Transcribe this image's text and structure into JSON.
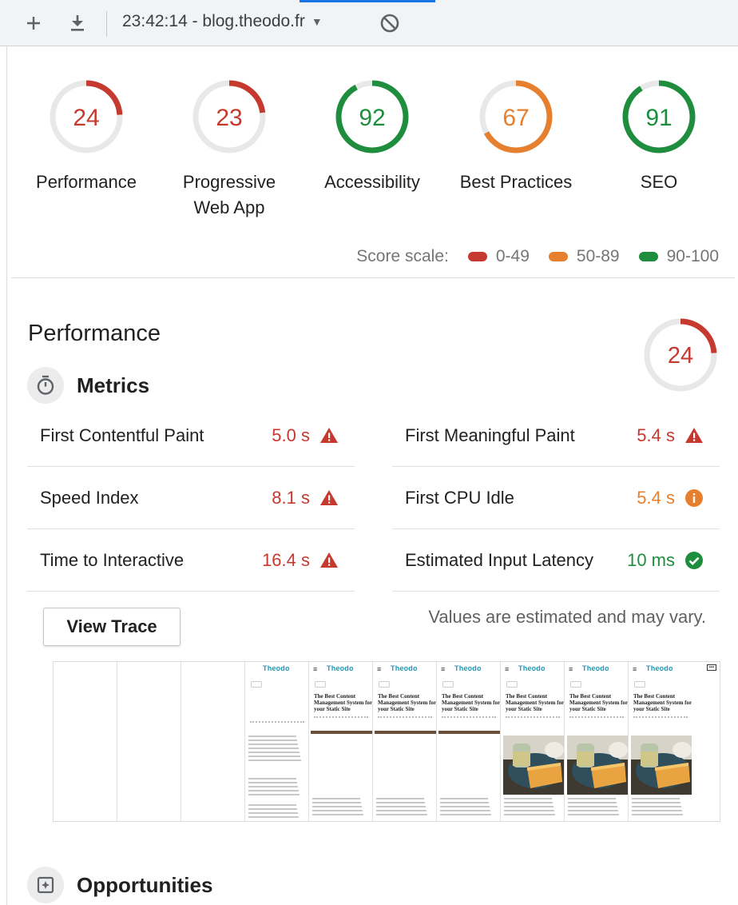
{
  "toolbar": {
    "add_label": "+",
    "report_title": "23:42:14 - blog.theodo.fr",
    "caret": "▼"
  },
  "colors": {
    "fail": "#c5392e",
    "average": "#e6802f",
    "pass": "#1e8e3e",
    "track": "#e8e8e8"
  },
  "gauges": [
    {
      "score": "24",
      "label": "Performance",
      "level": "fail",
      "value": 24
    },
    {
      "score": "23",
      "label": "Progressive Web App",
      "level": "fail",
      "value": 23
    },
    {
      "score": "92",
      "label": "Accessibility",
      "level": "pass",
      "value": 92
    },
    {
      "score": "67",
      "label": "Best Practices",
      "level": "average",
      "value": 67
    },
    {
      "score": "91",
      "label": "SEO",
      "level": "pass",
      "value": 91
    }
  ],
  "score_scale": {
    "label": "Score scale:",
    "ranges": [
      {
        "label": "0-49",
        "level": "fail"
      },
      {
        "label": "50-89",
        "level": "average"
      },
      {
        "label": "90-100",
        "level": "pass"
      }
    ]
  },
  "performance": {
    "title": "Performance",
    "score": "24",
    "value": 24,
    "metrics_title": "Metrics",
    "metrics": [
      {
        "name": "First Contentful Paint",
        "value": "5.0 s",
        "level": "fail",
        "icon": "warning-icon"
      },
      {
        "name": "First Meaningful Paint",
        "value": "5.4 s",
        "level": "fail",
        "icon": "warning-icon"
      },
      {
        "name": "Speed Index",
        "value": "8.1 s",
        "level": "fail",
        "icon": "warning-icon"
      },
      {
        "name": "First CPU Idle",
        "value": "5.4 s",
        "level": "average",
        "icon": "info-icon"
      },
      {
        "name": "Time to Interactive",
        "value": "16.4 s",
        "level": "fail",
        "icon": "warning-icon"
      },
      {
        "name": "Estimated Input Latency",
        "value": "10 ms",
        "level": "pass",
        "icon": "check-icon"
      }
    ],
    "view_trace": "View Trace",
    "note": "Values are estimated and may vary."
  },
  "filmstrip": {
    "logo": "Theodo",
    "article_title": "The Best Content Management System for your Static Site"
  },
  "opportunities": {
    "title": "Opportunities"
  }
}
